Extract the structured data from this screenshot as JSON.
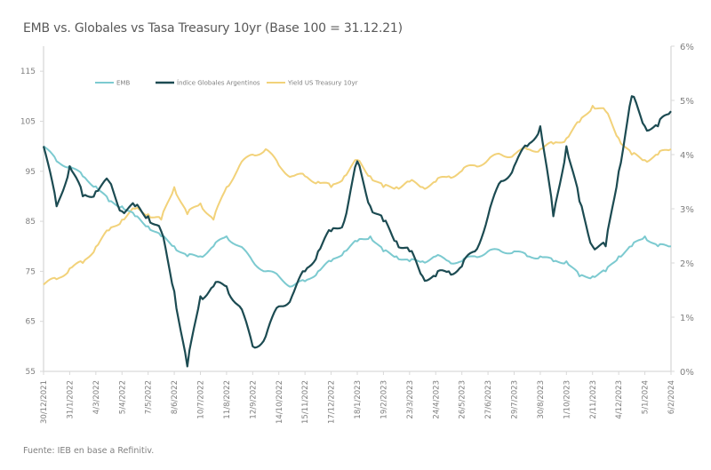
{
  "chart_data": {
    "type": "line",
    "title": "EMB vs. Globales vs Tasa Treasury 10yr (Base 100 = 31.12.21)",
    "source": "Fuente: IEB en base a Refinitiv.",
    "xlabel": "",
    "ylabel_left": "",
    "ylabel_right": "",
    "ylim_left": [
      55,
      120
    ],
    "yticks_left": [
      55,
      65,
      75,
      85,
      95,
      105,
      115
    ],
    "ytick_labels_left": [
      "55",
      "65",
      "75",
      "85",
      "95",
      "105",
      "115"
    ],
    "ylim_right": [
      0,
      6
    ],
    "yticks_right": [
      0,
      1,
      2,
      3,
      4,
      5,
      6
    ],
    "ytick_labels_right": [
      "0%",
      "1%",
      "2%",
      "3%",
      "4%",
      "5%",
      "6%"
    ],
    "grid": false,
    "legend_position": "top-left inside",
    "x_tick_labels": [
      "30/12/2021",
      "31/1/2022",
      "4/3/2022",
      "5/4/2022",
      "7/5/2022",
      "8/6/2022",
      "10/7/2022",
      "11/8/2022",
      "12/9/2022",
      "14/10/2022",
      "15/11/2022",
      "17/12/2022",
      "18/1/2023",
      "19/2/2023",
      "23/3/2023",
      "24/4/2023",
      "26/5/2023",
      "27/6/2023",
      "29/7/2023",
      "30/8/2023",
      "1/10/2023",
      "2/11/2023",
      "4/12/2023",
      "5/1/2024",
      "6/2/2024"
    ],
    "x_index_note": "x values are positions in tick units (0 = 30/12/2021, 24 = 6/2/2024)",
    "x": [
      0,
      0.5,
      1,
      1.5,
      2,
      2.5,
      3,
      3.5,
      4,
      4.5,
      5,
      5.5,
      6,
      6.5,
      7,
      7.5,
      8,
      8.5,
      9,
      9.5,
      10,
      10.5,
      11,
      11.5,
      12,
      12.5,
      13,
      13.5,
      14,
      14.5,
      15,
      15.5,
      16,
      16.5,
      17,
      17.5,
      18,
      18.5,
      19,
      19.5,
      20,
      20.5,
      21,
      21.5,
      22,
      22.5,
      23,
      23.5,
      24
    ],
    "series": [
      {
        "name": "EMB",
        "axis": "left",
        "color": "#7ccad0",
        "values": [
          100,
          97,
          96,
          94,
          92,
          89,
          88,
          86,
          84,
          82,
          80,
          78,
          78,
          80,
          82,
          80,
          77,
          75,
          74,
          72,
          73,
          75,
          77,
          79,
          81,
          82,
          79,
          78,
          77,
          77,
          78,
          77,
          77,
          78,
          79,
          79,
          79,
          78,
          78,
          77,
          77,
          74,
          74,
          75,
          78,
          80,
          82,
          80,
          80
        ]
      },
      {
        "name": "Índice Globales Argentinos",
        "axis": "left",
        "color": "#1c4b52",
        "values": [
          100,
          88,
          96,
          90,
          91,
          93,
          87,
          88,
          86,
          83,
          71,
          56,
          70,
          72,
          72,
          68,
          60,
          62,
          68,
          70,
          75,
          79,
          83,
          85,
          97,
          88,
          85,
          81,
          79,
          74,
          74,
          75,
          76,
          79,
          86,
          93,
          96,
          100,
          104,
          86,
          100,
          89,
          80,
          80,
          95,
          110,
          104,
          104,
          107
        ]
      },
      {
        "name": "Yield US Treasury 10yr",
        "axis": "right",
        "color": "#f2d27a",
        "values": [
          1.6,
          1.7,
          1.9,
          2.0,
          2.3,
          2.6,
          2.8,
          3.0,
          2.9,
          2.8,
          3.4,
          2.9,
          3.1,
          2.8,
          3.4,
          3.8,
          4.0,
          4.1,
          3.8,
          3.6,
          3.6,
          3.5,
          3.4,
          3.6,
          3.9,
          3.6,
          3.4,
          3.4,
          3.5,
          3.4,
          3.5,
          3.6,
          3.7,
          3.8,
          3.9,
          4.0,
          4.0,
          4.1,
          4.1,
          4.2,
          4.3,
          4.6,
          4.9,
          4.8,
          4.3,
          4.0,
          3.9,
          4.0,
          4.1
        ]
      }
    ]
  }
}
